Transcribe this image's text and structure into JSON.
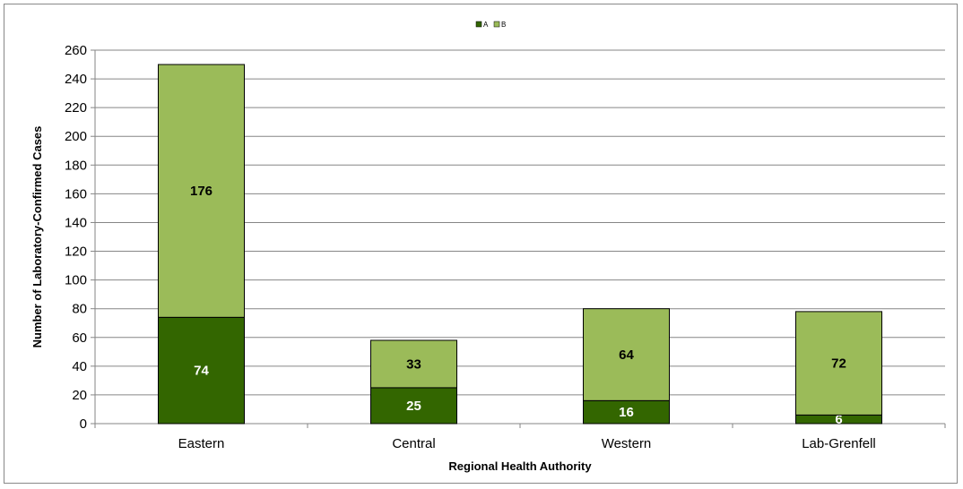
{
  "chart_data": {
    "type": "bar",
    "stacked": true,
    "title": "",
    "xlabel": "Regional Health Authority",
    "ylabel": "Number of Laboratory-Confirmed Cases",
    "categories": [
      "Eastern",
      "Central",
      "Western",
      "Lab-Grenfell"
    ],
    "series": [
      {
        "name": "A",
        "values": [
          74,
          25,
          16,
          6
        ],
        "color": "#336600",
        "label_color": "#ffffff"
      },
      {
        "name": "B",
        "values": [
          176,
          33,
          64,
          72
        ],
        "color": "#9bbb59",
        "label_color": "#000000"
      }
    ],
    "ylim": [
      0,
      260
    ],
    "yticks": [
      0,
      20,
      40,
      60,
      80,
      100,
      120,
      140,
      160,
      180,
      200,
      220,
      240,
      260
    ],
    "grid": true,
    "legend_position": "top-center"
  }
}
